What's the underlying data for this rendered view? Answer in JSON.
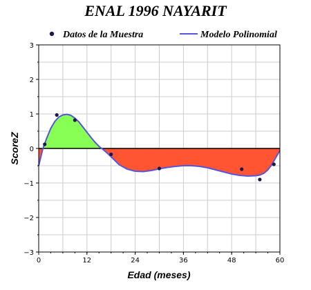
{
  "chart_data": {
    "type": "line",
    "title": "ENAL 1996 NAYARIT",
    "xlabel": "Edad (meses)",
    "ylabel": "ScoreZ",
    "xlim": [
      0,
      60
    ],
    "ylim": [
      -3,
      3
    ],
    "xticks": [
      "0",
      "12",
      "24",
      "36",
      "48",
      "60"
    ],
    "yticks": [
      "3",
      "2",
      "1",
      "0",
      "-1",
      "-2",
      "-3"
    ],
    "grid": true,
    "legend_position": "top",
    "series": [
      {
        "name": "Datos de la Muestra",
        "kind": "scatter",
        "color": "#1a1a4e",
        "x": [
          1.5,
          4.5,
          9,
          18,
          30,
          50.5,
          55,
          58.5
        ],
        "y": [
          0.12,
          0.97,
          0.82,
          -0.17,
          -0.58,
          -0.6,
          -0.9,
          -0.46
        ]
      },
      {
        "name": "Modelo Polinomial",
        "kind": "line",
        "color": "#5555dd",
        "x": [
          0,
          1,
          2,
          3,
          4,
          5,
          6,
          7,
          8,
          9,
          10,
          11,
          12,
          13,
          14,
          15,
          16,
          17,
          18,
          20,
          22,
          24,
          26,
          28,
          30,
          32,
          34,
          36,
          38,
          40,
          42,
          44,
          46,
          48,
          50,
          52,
          54,
          55,
          56,
          57,
          58,
          59,
          60
        ],
        "y": [
          -0.5,
          -0.02,
          0.3,
          0.58,
          0.78,
          0.91,
          0.97,
          0.99,
          0.96,
          0.88,
          0.77,
          0.62,
          0.47,
          0.32,
          0.18,
          0.06,
          -0.03,
          -0.13,
          -0.24,
          -0.47,
          -0.6,
          -0.66,
          -0.67,
          -0.64,
          -0.59,
          -0.55,
          -0.52,
          -0.5,
          -0.5,
          -0.52,
          -0.56,
          -0.62,
          -0.68,
          -0.74,
          -0.78,
          -0.8,
          -0.79,
          -0.77,
          -0.72,
          -0.62,
          -0.47,
          -0.26,
          -0.06
        ]
      }
    ],
    "fill_positive_color": "#88ff55",
    "fill_negative_color": "#ff5533"
  }
}
